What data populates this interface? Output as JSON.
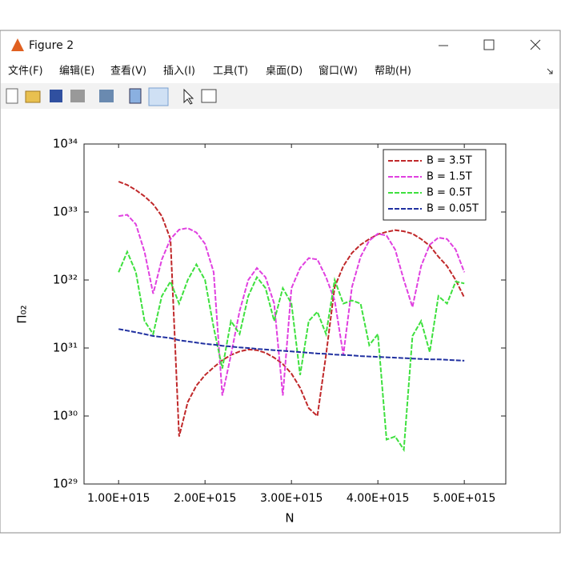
{
  "window": {
    "title": "Figure 2",
    "menu": [
      "文件(F)",
      "编辑(E)",
      "查看(V)",
      "插入(I)",
      "工具(T)",
      "桌面(D)",
      "窗口(W)",
      "帮助(H)"
    ]
  },
  "chart_data": {
    "type": "line",
    "x_label": "N",
    "y_label": "Π₀₂",
    "y_scale": "log",
    "legend": "upper right",
    "x": [
      1000000000000000.0,
      1100000000000000.0,
      1200000000000000.0,
      1300000000000000.0,
      1400000000000000.0,
      1500000000000000.0,
      1600000000000000.0,
      1700000000000000.0,
      1800000000000000.0,
      1900000000000000.0,
      2000000000000000.0,
      2100000000000000.0,
      2200000000000000.0,
      2300000000000000.0,
      2400000000000000.0,
      2500000000000000.0,
      2600000000000000.0,
      2700000000000000.0,
      2800000000000000.0,
      2900000000000000.0,
      3000000000000000.0,
      3100000000000000.0,
      3200000000000000.0,
      3300000000000000.0,
      3400000000000000.0,
      3500000000000000.0,
      3600000000000000.0,
      3700000000000000.0,
      3800000000000000.0,
      3900000000000000.0,
      4000000000000000.0,
      4100000000000000.0,
      4200000000000000.0,
      4300000000000000.0,
      4400000000000000.0,
      4500000000000000.0,
      4600000000000000.0,
      4700000000000000.0,
      4800000000000000.0,
      4900000000000000.0,
      5000000000000000.0
    ],
    "xlim": [
      600000000000000.0,
      5480000000000000.0
    ],
    "xticks": [
      {
        "value": 1000000000000000.0,
        "label": "1.00E+015"
      },
      {
        "value": 2000000000000000.0,
        "label": "2.00E+015"
      },
      {
        "value": 3000000000000000.0,
        "label": "3.00E+015"
      },
      {
        "value": 4000000000000000.0,
        "label": "4.00E+015"
      },
      {
        "value": 5000000000000000.0,
        "label": "5.00E+015"
      }
    ],
    "ylim": [
      1e+29,
      1e+34
    ],
    "yticks": [
      {
        "value": 1e+29,
        "label": "10²⁹"
      },
      {
        "value": 1e+30,
        "label": "10³⁰"
      },
      {
        "value": 1e+31,
        "label": "10³¹"
      },
      {
        "value": 1e+32,
        "label": "10³²"
      },
      {
        "value": 1e+33,
        "label": "10³³"
      },
      {
        "value": 1e+34,
        "label": "10³⁴"
      }
    ],
    "series": [
      {
        "name": "B = 3.5T",
        "color": "#c0282a",
        "values": [
          2.8e+33,
          2.5e+33,
          2.1e+33,
          1.7e+33,
          1.3e+33,
          8.7e+32,
          4e+32,
          5e+29,
          1.6e+30,
          2.8e+30,
          4e+30,
          5.2e+30,
          6.6e+30,
          7.9e+30,
          8.9e+30,
          9.5e+30,
          9.3e+30,
          8.5e+30,
          7.2e+30,
          5.8e+30,
          4.2e+30,
          2.6e+30,
          1.3e+30,
          1e+30,
          7.9e+30,
          7.9e+31,
          1.6e+32,
          2.5e+32,
          3.3e+32,
          4e+32,
          4.7e+32,
          5.1e+32,
          5.4e+32,
          5.2e+32,
          4.8e+32,
          4e+32,
          3.2e+32,
          2.2e+32,
          1.6e+32,
          1e+32,
          5.5e+31
        ]
      },
      {
        "name": "B = 1.5T",
        "color": "#e040e0",
        "values": [
          8.7e+32,
          9.1e+32,
          6.6e+32,
          2.6e+32,
          6.3e+31,
          2e+32,
          4e+32,
          5.5e+32,
          5.8e+32,
          5e+32,
          3.4e+32,
          1.3e+32,
          2e+30,
          7.9e+30,
          3.5e+31,
          1e+32,
          1.5e+32,
          1.1e+32,
          4.5e+31,
          2e+30,
          7.6e+31,
          1.5e+32,
          2.1e+32,
          2e+32,
          1.1e+32,
          5e+31,
          7.9e+30,
          7.9e+31,
          2.2e+32,
          3.8e+32,
          4.8e+32,
          4.5e+32,
          2.8e+32,
          1e+32,
          4e+31,
          1.6e+32,
          3.3e+32,
          4.2e+32,
          4e+32,
          2.8e+32,
          1.3e+32
        ]
      },
      {
        "name": "B = 0.5T",
        "color": "#3ee03e",
        "values": [
          1.3e+32,
          2.6e+32,
          1.3e+32,
          2.5e+31,
          1.6e+31,
          5.8e+31,
          9.5e+31,
          4.5e+31,
          1e+32,
          1.7e+32,
          1e+32,
          2e+31,
          5e+30,
          2.5e+31,
          1.6e+31,
          5.8e+31,
          1.1e+32,
          7.6e+31,
          2.5e+31,
          7.6e+31,
          4.5e+31,
          4e+30,
          2.5e+31,
          3.4e+31,
          1.6e+31,
          1e+32,
          4.5e+31,
          5e+31,
          4.5e+31,
          1.1e+31,
          1.6e+31,
          4.5e+29,
          5e+29,
          3.2e+29,
          1.5e+31,
          2.5e+31,
          8.7e+30,
          5.8e+31,
          4.5e+31,
          9.5e+31,
          8.9e+31
        ]
      },
      {
        "name": "B = 0.05T",
        "color": "#2030a0",
        "values": [
          1.9e+31,
          1.8e+31,
          1.7e+31,
          1.6e+31,
          1.5e+31,
          1.45e+31,
          1.4e+31,
          1.3e+31,
          1.25e+31,
          1.2e+31,
          1.15e+31,
          1.12e+31,
          1.08e+31,
          1.05e+31,
          1.02e+31,
          1e+31,
          9.7e+30,
          9.5e+30,
          9.3e+30,
          9.1e+30,
          8.9e+30,
          8.7e+30,
          8.5e+30,
          8.3e+30,
          8.2e+30,
          8e+30,
          7.9e+30,
          7.8e+30,
          7.6e+30,
          7.5e+30,
          7.4e+30,
          7.3e+30,
          7.2e+30,
          7.1e+30,
          7e+30,
          6.9e+30,
          6.8e+30,
          6.8e+30,
          6.7e+30,
          6.6e+30,
          6.5e+30
        ]
      }
    ]
  }
}
